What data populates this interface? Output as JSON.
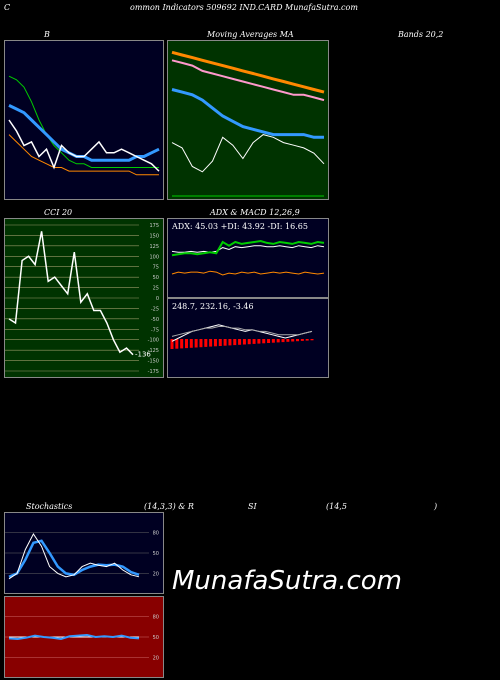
{
  "header": {
    "title": "Common Indicators 509692 IND.CARD MunafaSutra.com",
    "title_c": "C",
    "title_rest": "ommon  Indicators 509692  IND.CARD MunafaSutra.com"
  },
  "labels": {
    "bollinger": "B",
    "ma": "Moving Averages MA",
    "bands": "Bands 20,2",
    "cci": "CCI 20",
    "adx_macd": "ADX  & MACD 12,26,9",
    "stoch_a": "Stochastics",
    "stoch_b": "(14,3,3) & R",
    "stoch_c": "SI",
    "stoch_d": "(14,5",
    "stoch_e": ")",
    "adx_readout": "ADX: 45.03  +DI: 43.92  -DI: 16.65",
    "macd_readout": "248.7,  232.16,  -3.46",
    "cci_last": "-136",
    "watermark": "MunafaSutra.com"
  },
  "colors": {
    "price": "#ffffff",
    "ema_blue": "#3399ff",
    "green": "#00cc00",
    "orange": "#ff8800",
    "pink": "#ff99cc",
    "ma_panel_bg": "#003300",
    "cci_panel_bg": "#003300",
    "rsi_panel_bg": "#880000",
    "navy_bg": "#000022",
    "macd_hist": "#ff0000"
  },
  "chart_data": [
    {
      "type": "line",
      "panel": "bollinger",
      "series": [
        {
          "role": "upper",
          "values": [
            82,
            81,
            79,
            75,
            70,
            66,
            63,
            61,
            59,
            58,
            58,
            57,
            57,
            57,
            57,
            57,
            57,
            57,
            57,
            57,
            57
          ]
        },
        {
          "role": "middle",
          "values": [
            74,
            73,
            72,
            70,
            68,
            66,
            64,
            62,
            61,
            60,
            60,
            59,
            59,
            59,
            59,
            59,
            59,
            60,
            60,
            61,
            62
          ]
        },
        {
          "role": "lower",
          "values": [
            66,
            64,
            62,
            60,
            59,
            58,
            57,
            57,
            56,
            56,
            56,
            56,
            56,
            56,
            56,
            56,
            56,
            55,
            55,
            55,
            55
          ]
        },
        {
          "role": "price",
          "values": [
            70,
            67,
            63,
            64,
            60,
            62,
            57,
            63,
            61,
            60,
            60,
            62,
            64,
            61,
            61,
            62,
            61,
            60,
            59,
            58,
            56
          ]
        }
      ]
    },
    {
      "type": "line",
      "panel": "moving-averages",
      "series": [
        {
          "role": "ma-long",
          "values": [
            98,
            97,
            96,
            95,
            94,
            93,
            92,
            91,
            90,
            89,
            88,
            87,
            86,
            85,
            84,
            83
          ]
        },
        {
          "role": "ma-mid",
          "values": [
            95,
            94,
            93,
            91,
            90,
            89,
            88,
            87,
            86,
            85,
            84,
            83,
            82,
            82,
            81,
            80
          ]
        },
        {
          "role": "ma-short",
          "values": [
            84,
            83,
            82,
            80,
            77,
            74,
            72,
            70,
            69,
            68,
            67,
            67,
            67,
            67,
            66,
            66
          ]
        },
        {
          "role": "price",
          "values": [
            64,
            62,
            55,
            53,
            57,
            66,
            63,
            58,
            64,
            67,
            66,
            64,
            63,
            62,
            60,
            56
          ]
        }
      ]
    },
    {
      "type": "line",
      "panel": "cci",
      "ylim": [
        -175,
        175
      ],
      "yticks": [
        175,
        150,
        125,
        100,
        75,
        50,
        25,
        0,
        -25,
        -50,
        -75,
        -100,
        -125,
        -150,
        -175
      ],
      "series": [
        {
          "role": "cci",
          "values": [
            -50,
            -60,
            90,
            100,
            80,
            160,
            40,
            50,
            30,
            10,
            110,
            -10,
            10,
            -30,
            -30,
            -60,
            -100,
            -130,
            -120,
            -136
          ]
        }
      ]
    },
    {
      "type": "line",
      "panel": "adx",
      "values": {
        "adx": 45.03,
        "plus_di": 43.92,
        "minus_di": 16.65
      }
    },
    {
      "type": "line",
      "panel": "macd",
      "values": {
        "macd": 248.7,
        "signal": 232.16,
        "histogram": -3.46
      }
    },
    {
      "type": "line",
      "panel": "stochastics",
      "ylim": [
        0,
        100
      ],
      "yticks": [
        80,
        50,
        20
      ],
      "series": [
        {
          "role": "k",
          "values": [
            12,
            20,
            55,
            78,
            60,
            30,
            20,
            15,
            18,
            30,
            35,
            32,
            30,
            35,
            25,
            18,
            15
          ]
        },
        {
          "role": "d",
          "values": [
            15,
            20,
            40,
            65,
            68,
            50,
            30,
            20,
            18,
            25,
            30,
            33,
            32,
            33,
            30,
            22,
            18
          ]
        }
      ]
    },
    {
      "type": "line",
      "panel": "rsi",
      "ylim": [
        0,
        100
      ],
      "yticks": [
        80,
        50,
        20
      ],
      "series": [
        {
          "role": "rsi",
          "values": [
            48,
            47,
            49,
            52,
            50,
            49,
            47,
            51,
            52,
            53,
            50,
            51,
            50,
            52,
            49,
            48
          ]
        }
      ]
    }
  ]
}
